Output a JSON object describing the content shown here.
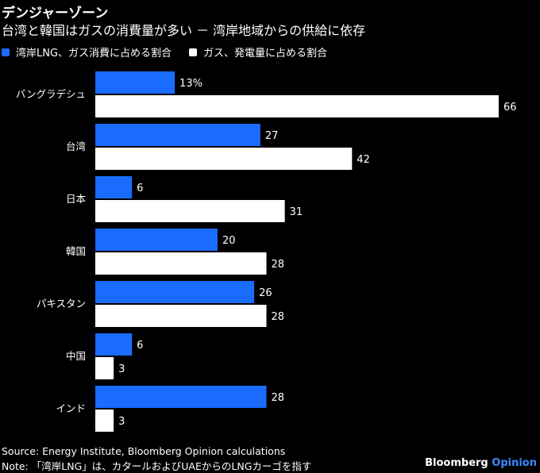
{
  "header": {
    "title": "デンジャーゾーン",
    "subtitle": "台湾と韓国はガスの消費量が多い － 湾岸地域からの供給に依存"
  },
  "colors": {
    "lng": "#1a6cff",
    "gas": "#ffffff",
    "background": "#000000"
  },
  "chart_data": {
    "type": "bar",
    "orientation": "horizontal",
    "categories": [
      "バングラデシュ",
      "台湾",
      "日本",
      "韓国",
      "パキスタン",
      "中国",
      "インド"
    ],
    "series": [
      {
        "name": "湾岸LNG、ガス消費に占める割合",
        "values": [
          13,
          27,
          6,
          20,
          26,
          6,
          28
        ],
        "labels": [
          "13%",
          "27",
          "6",
          "20",
          "26",
          "6",
          "28"
        ]
      },
      {
        "name": "ガス、発電量に占める割合",
        "values": [
          66,
          42,
          31,
          28,
          28,
          3,
          3
        ],
        "labels": [
          "66",
          "42",
          "31",
          "28",
          "28",
          "3",
          "3"
        ]
      }
    ],
    "xlim": [
      0,
      66
    ],
    "grid": false,
    "legend": "top-left"
  },
  "footer": {
    "source": "Source: Energy Institute, Bloomberg Opinion calculations",
    "note": "Note: 「湾岸LNG」は、カタールおよびUAEからのLNGカーゴを指す",
    "brand_main": "Bloomberg",
    "brand_accent": "Opinion"
  }
}
